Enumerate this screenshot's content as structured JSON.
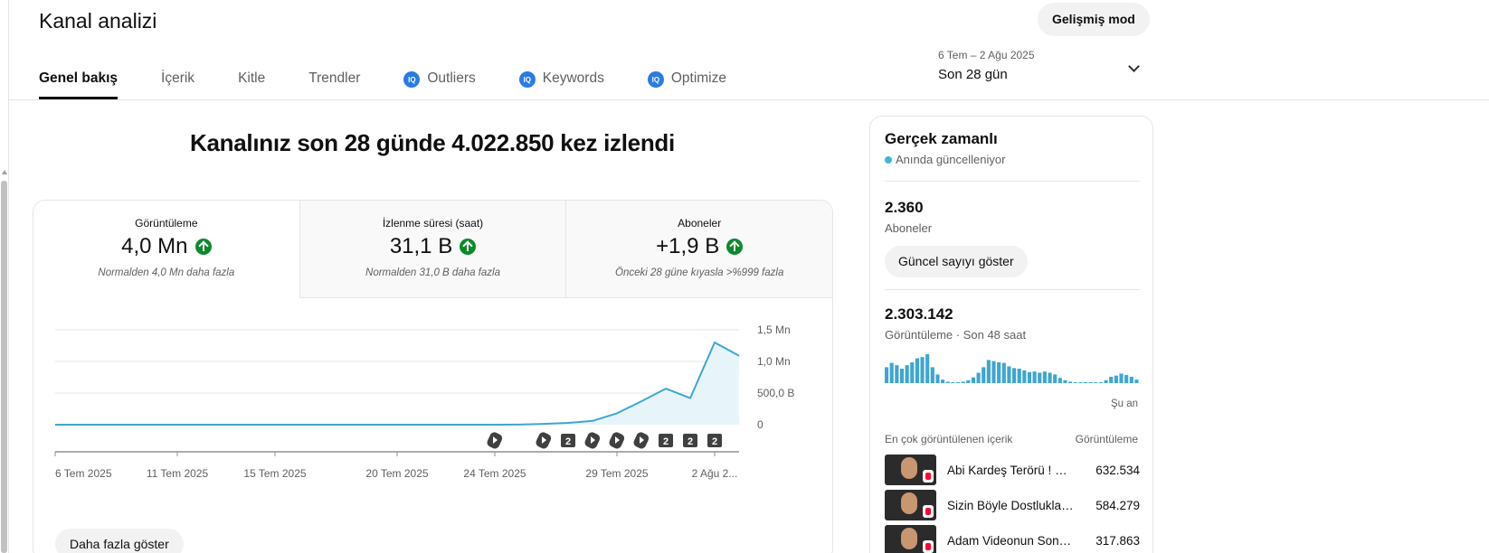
{
  "header": {
    "title": "Kanal analizi",
    "advanced_mode_label": "Gelişmiş mod"
  },
  "tabs": [
    {
      "label": "Genel bakış",
      "active": true,
      "has_ext_icon": false
    },
    {
      "label": "İçerik",
      "active": false,
      "has_ext_icon": false
    },
    {
      "label": "Kitle",
      "active": false,
      "has_ext_icon": false
    },
    {
      "label": "Trendler",
      "active": false,
      "has_ext_icon": false
    },
    {
      "label": "Outliers",
      "active": false,
      "has_ext_icon": true
    },
    {
      "label": "Keywords",
      "active": false,
      "has_ext_icon": true
    },
    {
      "label": "Optimize",
      "active": false,
      "has_ext_icon": true
    }
  ],
  "ext_icon_text": "IQ",
  "date_range": {
    "dates": "6 Tem – 2 Ağu 2025",
    "period": "Son 28 gün"
  },
  "headline": "Kanalınız son 28 günde 4.022.850 kez izlendi",
  "metrics": [
    {
      "label": "Görüntüleme",
      "value": "4,0 Mn",
      "sub": "Normalden 4,0 Mn daha fazla",
      "selected": true
    },
    {
      "label": "İzlenme süresi (saat)",
      "value": "31,1 B",
      "sub": "Normalden 31,0 B daha fazla",
      "selected": false
    },
    {
      "label": "Aboneler",
      "value": "+1,9 B",
      "sub": "Önceki 28 güne kıyasla >%999 fazla",
      "selected": false
    }
  ],
  "chart_data": {
    "type": "area",
    "title": "",
    "xlabel": "",
    "ylabel": "",
    "x_tick_labels": [
      "6 Tem 2025",
      "11 Tem 2025",
      "15 Tem 2025",
      "20 Tem 2025",
      "24 Tem 2025",
      "29 Tem 2025",
      "2 Ağu 2..."
    ],
    "y_tick_labels": [
      "0",
      "500,0 B",
      "1,0 Mn",
      "1,5 Mn"
    ],
    "ylim": [
      0,
      1500000
    ],
    "grid": true,
    "color": "#3ea6d1",
    "series": [
      {
        "values": [
          0,
          0,
          0,
          0,
          0,
          0,
          0,
          0,
          0,
          0,
          0,
          0,
          0,
          0,
          0,
          0,
          0,
          0,
          0,
          2000,
          12000,
          28000,
          60000,
          180000,
          370000,
          570000,
          420000,
          1300000,
          1090000
        ]
      }
    ],
    "markers": [
      {
        "index": 18,
        "kind": "short"
      },
      {
        "index": 20,
        "kind": "short"
      },
      {
        "index": 21,
        "kind": "count",
        "text": "2"
      },
      {
        "index": 22,
        "kind": "short"
      },
      {
        "index": 23,
        "kind": "short"
      },
      {
        "index": 24,
        "kind": "short"
      },
      {
        "index": 25,
        "kind": "count",
        "text": "2"
      },
      {
        "index": 26,
        "kind": "count",
        "text": "2"
      },
      {
        "index": 27,
        "kind": "count",
        "text": "2"
      }
    ]
  },
  "show_more_label": "Daha fazla göster",
  "realtime": {
    "title": "Gerçek zamanlı",
    "live_label": "Anında güncelleniyor",
    "subscribers_value": "2.360",
    "subscribers_label": "Aboneler",
    "show_count_label": "Güncel sayıyı göster",
    "views_value": "2.303.142",
    "views_label": "Görüntüleme · Son 48 saat",
    "now_label": "Şu an",
    "bar_color": "#3ea6d1",
    "bars": [
      0.55,
      0.7,
      0.62,
      0.5,
      0.62,
      0.72,
      0.86,
      0.9,
      1.0,
      0.55,
      0.3,
      0.12,
      0.05,
      0.03,
      0.03,
      0.05,
      0.1,
      0.2,
      0.36,
      0.55,
      0.8,
      0.76,
      0.72,
      0.7,
      0.58,
      0.52,
      0.5,
      0.44,
      0.38,
      0.4,
      0.36,
      0.4,
      0.36,
      0.3,
      0.18,
      0.1,
      0.05,
      0.03,
      0.02,
      0.02,
      0.02,
      0.02,
      0.03,
      0.1,
      0.22,
      0.26,
      0.33,
      0.28,
      0.22,
      0.12
    ],
    "top_content_header": "En çok görüntülenen içerik",
    "top_content_metric": "Görüntüleme",
    "top_content": [
      {
        "title": "Abi Kardeş Terörü ! #s...",
        "views": "632.534"
      },
      {
        "title": "Sizin Böyle Dostlukları...",
        "views": "584.279"
      },
      {
        "title": "Adam Videonun Sonun...",
        "views": "317.863"
      }
    ]
  }
}
